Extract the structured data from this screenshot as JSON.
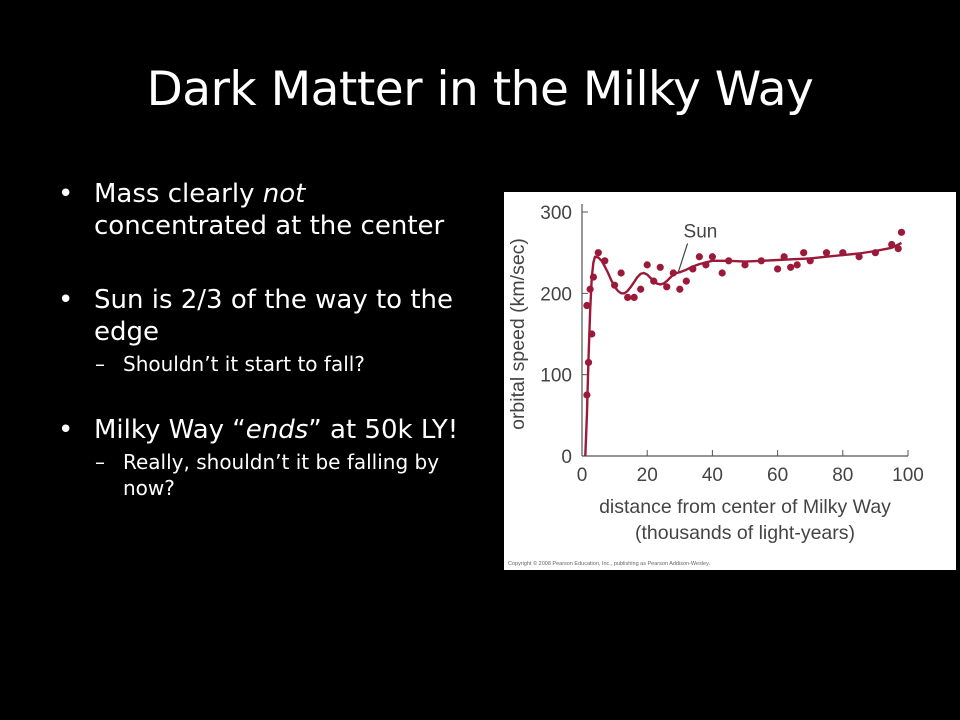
{
  "slide": {
    "title": "Dark Matter in the Milky Way",
    "bullets": [
      {
        "parts": [
          {
            "text": "Mass clearly ",
            "italic": false
          },
          {
            "text": "not",
            "italic": true
          },
          {
            "text": " concentrated at the center",
            "italic": false
          }
        ],
        "sub": []
      },
      {
        "parts": [
          {
            "text": "Sun is 2/3 of the way to the edge",
            "italic": false
          }
        ],
        "sub": [
          "Shouldn’t it start to fall?"
        ]
      },
      {
        "parts": [
          {
            "text": "Milky Way “",
            "italic": false
          },
          {
            "text": "ends",
            "italic": true
          },
          {
            "text": "” at 50k LY!",
            "italic": false
          }
        ],
        "sub": [
          "Really, shouldn’t it be falling by now?"
        ]
      }
    ],
    "bullet_symbol": "•",
    "sub_symbol": "–"
  },
  "chart_data": {
    "type": "scatter",
    "xlabel": "distance from center of Milky Way",
    "xlabel2": "(thousands of light-years)",
    "ylabel": "orbital speed (km/sec)",
    "xlim": [
      0,
      100
    ],
    "ylim": [
      0,
      300
    ],
    "xticks": [
      0,
      20,
      40,
      60,
      80,
      100
    ],
    "yticks": [
      0,
      100,
      200,
      300
    ],
    "annotation": "Sun",
    "annotation_point": [
      29,
      222
    ],
    "copyright": "Copyright © 2008 Pearson Education, Inc., publishing as Pearson Addison-Wesley.",
    "colors": {
      "points": "#9b1a3a",
      "axes": "#555555",
      "text": "#444444"
    },
    "series": [
      {
        "kind": "points",
        "x": [
          1.5,
          1.5,
          2,
          2.5,
          3,
          3.5,
          5,
          7,
          10,
          12,
          14,
          16,
          18,
          20,
          22,
          24,
          26,
          28,
          30,
          32,
          34,
          36,
          38,
          40,
          43,
          45,
          50,
          55,
          60,
          62,
          64,
          66,
          68,
          70,
          75,
          80,
          85,
          90,
          95,
          97,
          98
        ],
        "y": [
          75,
          185,
          115,
          205,
          150,
          220,
          250,
          240,
          210,
          225,
          195,
          195,
          205,
          235,
          215,
          232,
          208,
          225,
          205,
          215,
          230,
          245,
          235,
          245,
          225,
          240,
          235,
          240,
          230,
          245,
          232,
          235,
          250,
          240,
          250,
          250,
          245,
          250,
          260,
          255,
          275
        ]
      },
      {
        "kind": "curve",
        "x": [
          1,
          1.5,
          2,
          2.5,
          3,
          3.5,
          4,
          5,
          6,
          7,
          8,
          9,
          10,
          11,
          12,
          13,
          14,
          15,
          16,
          17,
          18,
          19,
          20,
          21,
          22,
          23,
          24,
          25,
          26,
          27,
          28,
          29,
          30,
          32,
          34,
          36,
          38,
          40,
          45,
          50,
          55,
          60,
          65,
          70,
          75,
          80,
          85,
          90,
          95,
          98
        ],
        "y": [
          0,
          50,
          120,
          180,
          220,
          238,
          245,
          244,
          240,
          233,
          225,
          216,
          208,
          203,
          200,
          200,
          203,
          208,
          214,
          220,
          224,
          225,
          223,
          219,
          215,
          212,
          211,
          212,
          215,
          219,
          223,
          225,
          226,
          229,
          233,
          236,
          238,
          240,
          240,
          239,
          240,
          241,
          242,
          243,
          245,
          247,
          249,
          252,
          256,
          262
        ]
      }
    ]
  }
}
